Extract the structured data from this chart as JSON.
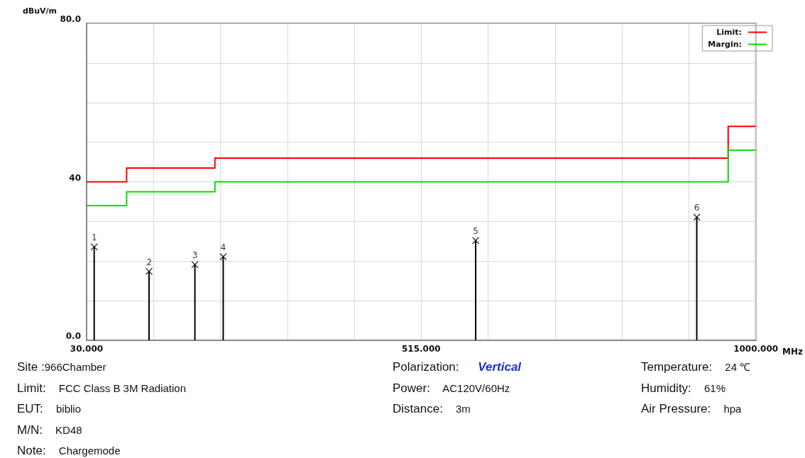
{
  "chart_data": {
    "type": "step",
    "ylabel": "dBuV/m",
    "xlabel": "MHz",
    "xlim": [
      30,
      1000
    ],
    "xticks": [
      {
        "value": 30,
        "label": "30.000"
      },
      {
        "value": 127,
        "label": null
      },
      {
        "value": 224,
        "label": null
      },
      {
        "value": 321,
        "label": null
      },
      {
        "value": 418,
        "label": null
      },
      {
        "value": 515,
        "label": "515.000"
      },
      {
        "value": 612,
        "label": null
      },
      {
        "value": 709,
        "label": null
      },
      {
        "value": 806,
        "label": null
      },
      {
        "value": 903,
        "label": null
      },
      {
        "value": 1000,
        "label": "1000.000"
      }
    ],
    "ylim": [
      0,
      80
    ],
    "yticks": [
      {
        "value": 0,
        "label": "0.0"
      },
      {
        "value": 10,
        "label": null
      },
      {
        "value": 20,
        "label": null
      },
      {
        "value": 30,
        "label": null
      },
      40,
      {
        "value": 50,
        "label": null
      },
      {
        "value": 60,
        "label": null
      },
      {
        "value": 70,
        "label": null
      },
      {
        "value": 80,
        "label": "80.0"
      }
    ],
    "grid": true,
    "legend": "top right",
    "series": [
      {
        "name": "Limit:",
        "color": "#ff0000",
        "x": [
          30,
          88,
          216,
          960,
          1000
        ],
        "values": [
          40,
          43.5,
          46,
          54,
          54
        ]
      },
      {
        "name": "Margin:",
        "color": "#00e000",
        "x": [
          30,
          88,
          216,
          960,
          1000
        ],
        "values": [
          34,
          37.5,
          40,
          48,
          48
        ]
      },
      {
        "color": "#000000",
        "type": "lollipop",
        "marker": "cross",
        "x": [
          41,
          120.5,
          187,
          228,
          594,
          914.5
        ],
        "values": [
          23.6,
          17.4,
          19.1,
          21.1,
          25.2,
          31.1
        ]
      }
    ],
    "annotations": [
      {
        "text": "1",
        "x": 41,
        "y": 23.6
      },
      {
        "text": "2",
        "x": 120.5,
        "y": 17.4
      },
      {
        "text": "3",
        "x": 187,
        "y": 19.1
      },
      {
        "text": "4",
        "x": 228,
        "y": 21.1
      },
      {
        "text": "5",
        "x": 594,
        "y": 25.2
      },
      {
        "text": "6",
        "x": 914.5,
        "y": 31.1
      },
      "Site :966Chamber",
      "Limit: FCC Class B 3M Radiation",
      "EUT: biblio",
      "M/N: KD48",
      "Note: Chargemode",
      "Polarization: Vertical",
      "Power: AC120V/60Hz",
      "Distance: 3m",
      "Temperature: 24 ℃",
      "Humidity: 61%",
      "Air Pressure: hpa"
    ]
  }
}
